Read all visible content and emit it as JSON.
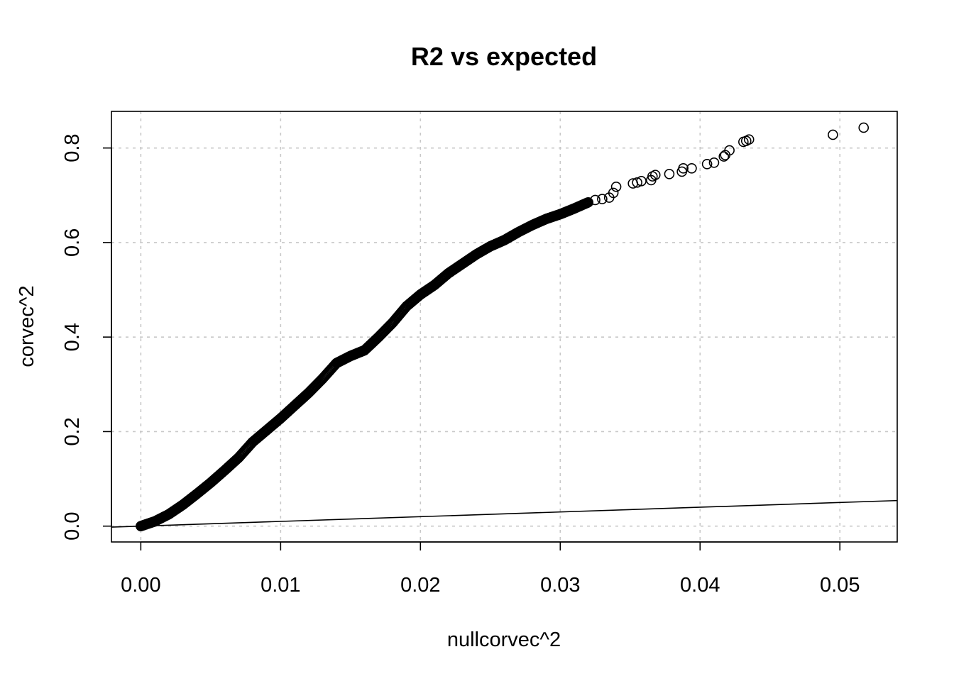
{
  "chart_data": {
    "type": "scatter",
    "title": "R2 vs expected",
    "xlabel": "nullcorvec^2",
    "ylabel": "corvec^2",
    "xlim": [
      -0.0021,
      0.0541
    ],
    "ylim": [
      -0.0335,
      0.8775
    ],
    "x_ticks": [
      0.0,
      0.01,
      0.02,
      0.03,
      0.04,
      0.05
    ],
    "x_tick_labels": [
      "0.00",
      "0.01",
      "0.02",
      "0.03",
      "0.04",
      "0.05"
    ],
    "y_ticks": [
      0.0,
      0.2,
      0.4,
      0.6,
      0.8
    ],
    "y_tick_labels": [
      "0.0",
      "0.2",
      "0.4",
      "0.6",
      "0.8"
    ],
    "grid": true,
    "reference_line": {
      "intercept": 0,
      "slope": 1
    },
    "curve": [
      [
        0.0,
        0.0
      ],
      [
        0.001,
        0.01
      ],
      [
        0.002,
        0.025
      ],
      [
        0.003,
        0.045
      ],
      [
        0.004,
        0.068
      ],
      [
        0.005,
        0.092
      ],
      [
        0.006,
        0.118
      ],
      [
        0.007,
        0.145
      ],
      [
        0.008,
        0.178
      ],
      [
        0.009,
        0.203
      ],
      [
        0.01,
        0.228
      ],
      [
        0.011,
        0.255
      ],
      [
        0.012,
        0.282
      ],
      [
        0.013,
        0.312
      ],
      [
        0.014,
        0.345
      ],
      [
        0.015,
        0.36
      ],
      [
        0.016,
        0.372
      ],
      [
        0.017,
        0.4
      ],
      [
        0.018,
        0.43
      ],
      [
        0.019,
        0.465
      ],
      [
        0.02,
        0.49
      ],
      [
        0.021,
        0.51
      ],
      [
        0.022,
        0.535
      ],
      [
        0.023,
        0.555
      ],
      [
        0.024,
        0.575
      ],
      [
        0.025,
        0.592
      ],
      [
        0.026,
        0.605
      ],
      [
        0.027,
        0.622
      ],
      [
        0.028,
        0.637
      ],
      [
        0.029,
        0.65
      ],
      [
        0.03,
        0.66
      ],
      [
        0.031,
        0.672
      ],
      [
        0.032,
        0.685
      ]
    ],
    "points": [
      [
        0.0325,
        0.69
      ],
      [
        0.033,
        0.692
      ],
      [
        0.0335,
        0.695
      ],
      [
        0.0338,
        0.705
      ],
      [
        0.034,
        0.718
      ],
      [
        0.0352,
        0.725
      ],
      [
        0.0355,
        0.727
      ],
      [
        0.0358,
        0.73
      ],
      [
        0.0365,
        0.732
      ],
      [
        0.0366,
        0.74
      ],
      [
        0.0368,
        0.743
      ],
      [
        0.0378,
        0.745
      ],
      [
        0.0387,
        0.75
      ],
      [
        0.0388,
        0.757
      ],
      [
        0.0394,
        0.757
      ],
      [
        0.0405,
        0.766
      ],
      [
        0.041,
        0.769
      ],
      [
        0.0417,
        0.782
      ],
      [
        0.0418,
        0.785
      ],
      [
        0.0421,
        0.795
      ],
      [
        0.0431,
        0.813
      ],
      [
        0.0433,
        0.815
      ],
      [
        0.0435,
        0.818
      ],
      [
        0.0495,
        0.828
      ],
      [
        0.0517,
        0.843
      ]
    ]
  }
}
